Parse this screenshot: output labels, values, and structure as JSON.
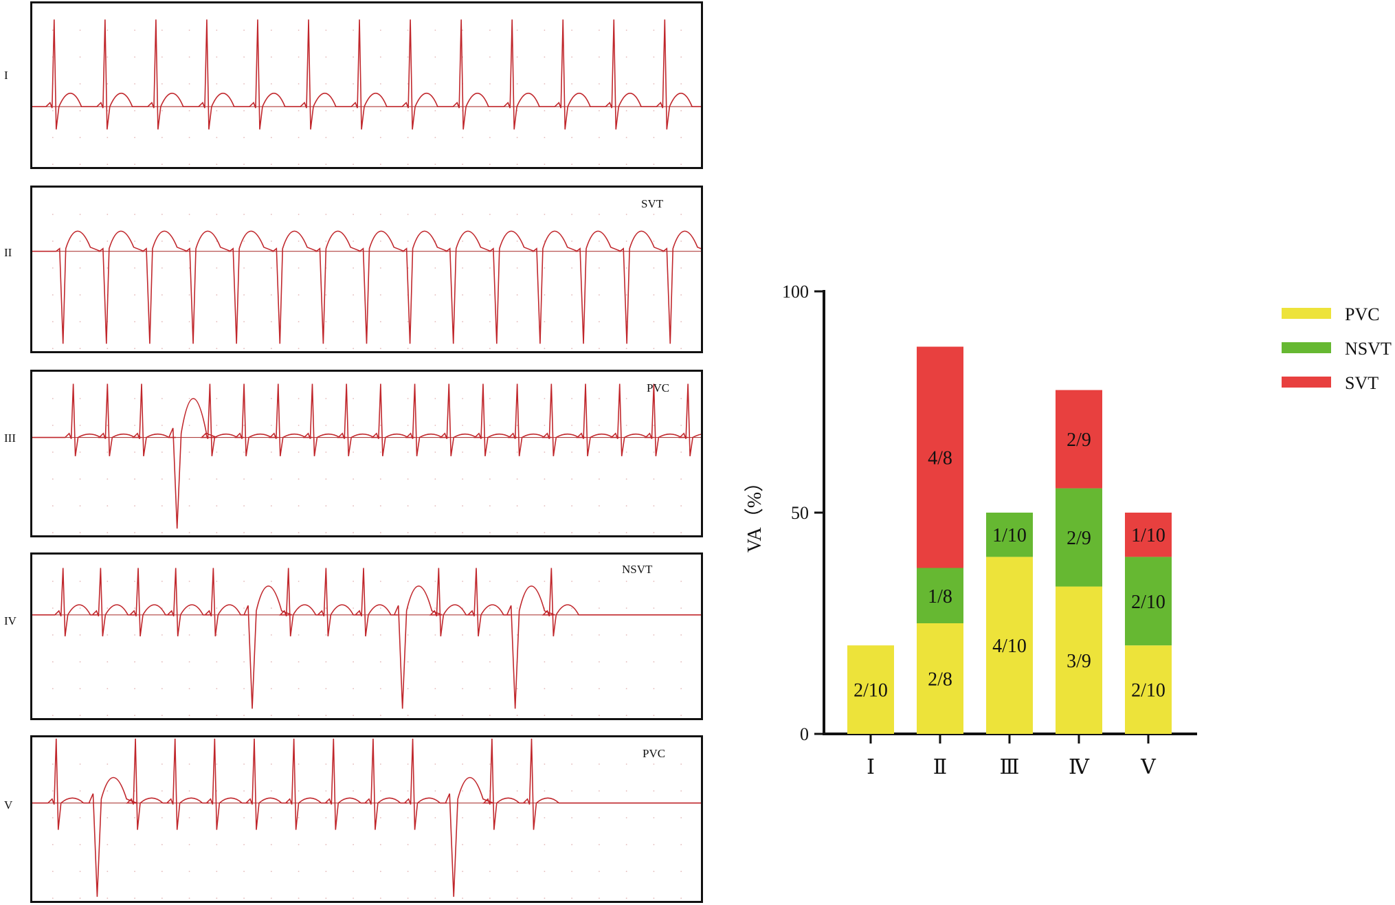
{
  "ecg_strips": [
    {
      "label": "I",
      "event": ""
    },
    {
      "label": "II",
      "event": "SVT"
    },
    {
      "label": "III",
      "event": "PVC"
    },
    {
      "label": "IV",
      "event": "NSVT"
    },
    {
      "label": "V",
      "event": "PVC"
    }
  ],
  "colors": {
    "trace": "#c0262b",
    "baseline": "#b0403f",
    "PVC": "#ede33a",
    "NSVT": "#66b832",
    "SVT": "#e8403f",
    "axis": "#111111"
  },
  "chart_data": {
    "type": "bar",
    "stacked": true,
    "title": "",
    "xlabel": "",
    "ylabel": "VA（%）",
    "ylim": [
      0,
      100
    ],
    "yticks": [
      0,
      50,
      100
    ],
    "categories": [
      "Ⅰ",
      "Ⅱ",
      "Ⅲ",
      "Ⅳ",
      "Ⅴ"
    ],
    "series": [
      {
        "name": "PVC",
        "values": [
          20,
          25,
          40,
          33.3,
          20
        ],
        "labels": [
          "2/10",
          "2/8",
          "4/10",
          "3/9",
          "2/10"
        ]
      },
      {
        "name": "NSVT",
        "values": [
          0,
          12.5,
          10,
          22.2,
          20
        ],
        "labels": [
          "",
          "1/8",
          "1/10",
          "2/9",
          "2/10"
        ]
      },
      {
        "name": "SVT",
        "values": [
          0,
          50,
          0,
          22.2,
          10
        ],
        "labels": [
          "",
          "4/8",
          "",
          "2/9",
          "1/10"
        ]
      }
    ],
    "legend": {
      "position": "top-right",
      "entries": [
        "PVC",
        "NSVT",
        "SVT"
      ]
    }
  }
}
